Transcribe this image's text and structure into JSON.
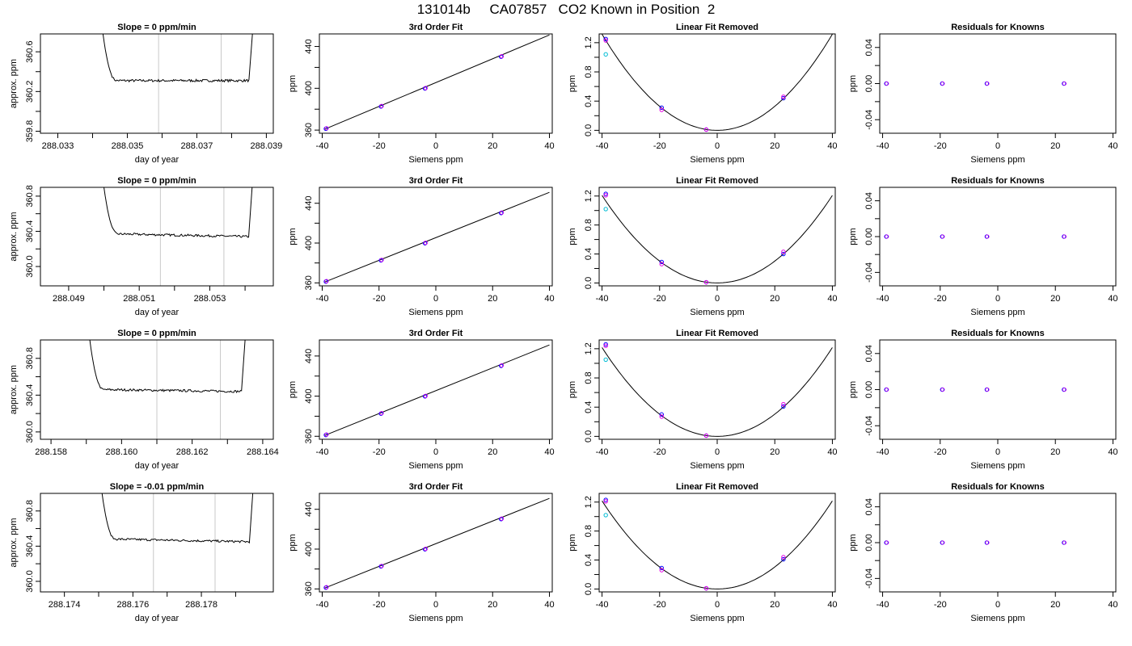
{
  "page_title": "131014b     CA07857   CO2 Known in Position  2",
  "colors": {
    "frame": "#000000",
    "marker_line": "#c8c8c8",
    "point_blue": "#0000ff",
    "point_magenta": "#e600e6",
    "point_cyan": "#00bcd4",
    "line": "#000000"
  },
  "chart_data": [
    {
      "type": "line",
      "title": "Slope =  0  ppm/min",
      "xlabel": "day of year",
      "ylabel": "approx. ppm",
      "xlim": [
        288.0325,
        288.0392
      ],
      "ylim": [
        359.78,
        360.78
      ],
      "xticks": [
        288.033,
        288.034,
        288.035,
        288.036,
        288.037,
        288.038,
        288.039
      ],
      "xticklabels": [
        "288.033",
        "",
        "288.035",
        "",
        "288.037",
        "",
        "288.039"
      ],
      "yticks": [
        359.8,
        360.0,
        360.2,
        360.4,
        360.6
      ],
      "yticklabels": [
        "359.8",
        "",
        "360.2",
        "",
        "360.6"
      ],
      "vlines": [
        288.0359,
        288.0377
      ],
      "series": [
        {
          "x": [
            288.0343,
            288.0345,
            288.0347,
            288.0385,
            288.0386
          ],
          "y": [
            360.78,
            360.4,
            360.31,
            360.31,
            360.78
          ]
        }
      ]
    },
    {
      "type": "line",
      "title": "3rd Order Fit",
      "xlabel": "Siemens ppm",
      "ylabel": "ppm",
      "xlim": [
        -41,
        41
      ],
      "ylim": [
        357,
        452
      ],
      "xticks": [
        -40,
        -20,
        0,
        20,
        40
      ],
      "xticklabels": [
        "-40",
        "-20",
        "0",
        "20",
        "40"
      ],
      "yticks": [
        360,
        380,
        400,
        420,
        440
      ],
      "yticklabels": [
        "360",
        "",
        "400",
        "",
        "440"
      ],
      "fit_line": [
        [
          -39,
          361
        ],
        [
          40,
          451
        ]
      ],
      "points": [
        {
          "x": -38.7,
          "y": 361.3
        },
        {
          "x": -19.3,
          "y": 382.6
        },
        {
          "x": -3.8,
          "y": 399.8
        },
        {
          "x": 23.0,
          "y": 430.2
        }
      ]
    },
    {
      "type": "line",
      "title": "Linear Fit Removed",
      "xlabel": "Siemens ppm",
      "ylabel": "ppm",
      "xlim": [
        -41,
        41
      ],
      "ylim": [
        -0.04,
        1.32
      ],
      "xticks": [
        -40,
        -20,
        0,
        20,
        40
      ],
      "xticklabels": [
        "-40",
        "-20",
        "0",
        "20",
        "40"
      ],
      "yticks": [
        0,
        0.2,
        0.4,
        0.6,
        0.8,
        1.0,
        1.2
      ],
      "yticklabels": [
        "0.0",
        "",
        "0.4",
        "",
        "0.8",
        "",
        "1.2"
      ],
      "quadratic": {
        "vertex_x": 0,
        "coef": 0.000822
      },
      "points": [
        {
          "x": -38.7,
          "y": 1.25,
          "c": "blue"
        },
        {
          "x": -38.7,
          "y": 1.23,
          "c": "magenta"
        },
        {
          "x": -38.7,
          "y": 1.04,
          "c": "cyan"
        },
        {
          "x": -19.3,
          "y": 0.31,
          "c": "blue"
        },
        {
          "x": -19.3,
          "y": 0.28,
          "c": "magenta"
        },
        {
          "x": -3.8,
          "y": 0.01,
          "c": "blue"
        },
        {
          "x": -3.8,
          "y": 0.01,
          "c": "magenta"
        },
        {
          "x": 23.0,
          "y": 0.44,
          "c": "blue"
        },
        {
          "x": 23.0,
          "y": 0.46,
          "c": "magenta"
        }
      ]
    },
    {
      "type": "scatter",
      "title": "Residuals for Knowns",
      "xlabel": "Siemens ppm",
      "ylabel": "ppm",
      "xlim": [
        -41,
        41
      ],
      "ylim": [
        -0.055,
        0.055
      ],
      "xticks": [
        -40,
        -20,
        0,
        20,
        40
      ],
      "xticklabels": [
        "-40",
        "-20",
        "0",
        "20",
        "40"
      ],
      "yticks": [
        -0.04,
        -0.02,
        0,
        0.02,
        0.04
      ],
      "yticklabels": [
        "-0.04",
        "",
        "0.00",
        "",
        "0.04"
      ],
      "points": [
        {
          "x": -38.7,
          "y": 0
        },
        {
          "x": -19.3,
          "y": 0
        },
        {
          "x": -3.8,
          "y": 0
        },
        {
          "x": 23.0,
          "y": 0
        }
      ]
    },
    {
      "type": "line",
      "title": "Slope =  0  ppm/min",
      "xlabel": "day of year",
      "ylabel": "approx. ppm",
      "xlim": [
        288.0482,
        288.0548
      ],
      "ylim": [
        359.78,
        360.9
      ],
      "xticks": [
        288.049,
        288.05,
        288.051,
        288.052,
        288.053,
        288.054
      ],
      "xticklabels": [
        "288.049",
        "",
        "288.051",
        "",
        "288.053",
        ""
      ],
      "yticks": [
        360.0,
        360.2,
        360.4,
        360.6,
        360.8
      ],
      "yticklabels": [
        "360.0",
        "",
        "360.4",
        "",
        "360.8"
      ],
      "vlines": [
        288.0516,
        288.0534
      ],
      "series": [
        {
          "x": [
            288.05,
            288.0502,
            288.0504,
            288.0541,
            288.0542
          ],
          "y": [
            360.9,
            360.5,
            360.37,
            360.34,
            360.9
          ]
        }
      ]
    },
    {
      "type": "line",
      "title": "3rd Order Fit",
      "xlabel": "Siemens ppm",
      "ylabel": "ppm",
      "xlim": [
        -41,
        41
      ],
      "ylim": [
        357,
        456
      ],
      "xticks": [
        -40,
        -20,
        0,
        20,
        40
      ],
      "xticklabels": [
        "-40",
        "-20",
        "0",
        "20",
        "40"
      ],
      "yticks": [
        360,
        380,
        400,
        420,
        440
      ],
      "yticklabels": [
        "360",
        "",
        "400",
        "",
        "440"
      ],
      "fit_line": [
        [
          -39,
          361
        ],
        [
          40,
          451
        ]
      ],
      "points": [
        {
          "x": -38.7,
          "y": 361.3
        },
        {
          "x": -19.3,
          "y": 382.6
        },
        {
          "x": -3.8,
          "y": 399.8
        },
        {
          "x": 23.0,
          "y": 430.2
        }
      ]
    },
    {
      "type": "line",
      "title": "Linear Fit Removed",
      "xlabel": "Siemens ppm",
      "ylabel": "ppm",
      "xlim": [
        -41,
        41
      ],
      "ylim": [
        -0.04,
        1.32
      ],
      "xticks": [
        -40,
        -20,
        0,
        20,
        40
      ],
      "xticklabels": [
        "-40",
        "-20",
        "0",
        "20",
        "40"
      ],
      "yticks": [
        0,
        0.2,
        0.4,
        0.6,
        0.8,
        1.0,
        1.2
      ],
      "yticklabels": [
        "0.0",
        "",
        "0.4",
        "",
        "0.8",
        "",
        "1.2"
      ],
      "quadratic": {
        "vertex_x": 0,
        "coef": 0.000755
      },
      "points": [
        {
          "x": -38.7,
          "y": 1.23,
          "c": "blue"
        },
        {
          "x": -38.7,
          "y": 1.21,
          "c": "magenta"
        },
        {
          "x": -38.7,
          "y": 1.02,
          "c": "cyan"
        },
        {
          "x": -19.3,
          "y": 0.29,
          "c": "blue"
        },
        {
          "x": -19.3,
          "y": 0.26,
          "c": "magenta"
        },
        {
          "x": -3.8,
          "y": 0.01,
          "c": "blue"
        },
        {
          "x": -3.8,
          "y": 0.01,
          "c": "magenta"
        },
        {
          "x": 23.0,
          "y": 0.4,
          "c": "blue"
        },
        {
          "x": 23.0,
          "y": 0.43,
          "c": "magenta"
        }
      ]
    },
    {
      "type": "scatter",
      "title": "Residuals for Knowns",
      "xlabel": "Siemens ppm",
      "ylabel": "ppm",
      "xlim": [
        -41,
        41
      ],
      "ylim": [
        -0.055,
        0.055
      ],
      "xticks": [
        -40,
        -20,
        0,
        20,
        40
      ],
      "xticklabels": [
        "-40",
        "-20",
        "0",
        "20",
        "40"
      ],
      "yticks": [
        -0.04,
        -0.02,
        0,
        0.02,
        0.04
      ],
      "yticklabels": [
        "-0.04",
        "",
        "0.00",
        "",
        "0.04"
      ],
      "points": [
        {
          "x": -38.7,
          "y": 0
        },
        {
          "x": -19.3,
          "y": 0
        },
        {
          "x": -3.8,
          "y": 0
        },
        {
          "x": 23.0,
          "y": 0
        }
      ]
    },
    {
      "type": "line",
      "title": "Slope =  0  ppm/min",
      "xlabel": "day of year",
      "ylabel": "approx. ppm",
      "xlim": [
        288.1577,
        288.1643
      ],
      "ylim": [
        359.92,
        361.0
      ],
      "xticks": [
        288.158,
        288.159,
        288.16,
        288.161,
        288.162,
        288.163,
        288.164
      ],
      "xticklabels": [
        "288.158",
        "",
        "288.160",
        "",
        "288.162",
        "",
        "288.164"
      ],
      "yticks": [
        360.0,
        360.2,
        360.4,
        360.6,
        360.8
      ],
      "yticklabels": [
        "360.0",
        "",
        "360.4",
        "",
        "360.8"
      ],
      "vlines": [
        288.161,
        288.1628
      ],
      "series": [
        {
          "x": [
            288.1591,
            288.1593,
            288.1595,
            288.1634,
            288.1635
          ],
          "y": [
            361.0,
            360.55,
            360.46,
            360.44,
            361.0
          ]
        }
      ]
    },
    {
      "type": "line",
      "title": "3rd Order Fit",
      "xlabel": "Siemens ppm",
      "ylabel": "ppm",
      "xlim": [
        -41,
        41
      ],
      "ylim": [
        357,
        456
      ],
      "xticks": [
        -40,
        -20,
        0,
        20,
        40
      ],
      "xticklabels": [
        "-40",
        "-20",
        "0",
        "20",
        "40"
      ],
      "yticks": [
        360,
        380,
        400,
        420,
        440
      ],
      "yticklabels": [
        "360",
        "",
        "400",
        "",
        "440"
      ],
      "fit_line": [
        [
          -39,
          361
        ],
        [
          40,
          451
        ]
      ],
      "points": [
        {
          "x": -38.7,
          "y": 361.3
        },
        {
          "x": -19.3,
          "y": 382.6
        },
        {
          "x": -3.8,
          "y": 399.8
        },
        {
          "x": 23.0,
          "y": 430.2
        }
      ]
    },
    {
      "type": "line",
      "title": "Linear Fit Removed",
      "xlabel": "Siemens ppm",
      "ylabel": "ppm",
      "xlim": [
        -41,
        41
      ],
      "ylim": [
        -0.04,
        1.32
      ],
      "xticks": [
        -40,
        -20,
        0,
        20,
        40
      ],
      "xticklabels": [
        "-40",
        "-20",
        "0",
        "20",
        "40"
      ],
      "yticks": [
        0,
        0.2,
        0.4,
        0.6,
        0.8,
        1.0,
        1.2
      ],
      "yticklabels": [
        "0.0",
        "",
        "0.4",
        "",
        "0.8",
        "",
        "1.2"
      ],
      "quadratic": {
        "vertex_x": 0,
        "coef": 0.00076
      },
      "points": [
        {
          "x": -38.7,
          "y": 1.26,
          "c": "blue"
        },
        {
          "x": -38.7,
          "y": 1.24,
          "c": "magenta"
        },
        {
          "x": -38.7,
          "y": 1.05,
          "c": "cyan"
        },
        {
          "x": -19.3,
          "y": 0.3,
          "c": "blue"
        },
        {
          "x": -19.3,
          "y": 0.27,
          "c": "magenta"
        },
        {
          "x": -3.8,
          "y": 0.01,
          "c": "blue"
        },
        {
          "x": -3.8,
          "y": 0.01,
          "c": "magenta"
        },
        {
          "x": 23.0,
          "y": 0.41,
          "c": "blue"
        },
        {
          "x": 23.0,
          "y": 0.44,
          "c": "magenta"
        }
      ]
    },
    {
      "type": "scatter",
      "title": "Residuals for Knowns",
      "xlabel": "Siemens ppm",
      "ylabel": "ppm",
      "xlim": [
        -41,
        41
      ],
      "ylim": [
        -0.055,
        0.055
      ],
      "xticks": [
        -40,
        -20,
        0,
        20,
        40
      ],
      "xticklabels": [
        "-40",
        "-20",
        "0",
        "20",
        "40"
      ],
      "yticks": [
        -0.04,
        -0.02,
        0,
        0.02,
        0.04
      ],
      "yticklabels": [
        "-0.04",
        "",
        "0.00",
        "",
        "0.04"
      ],
      "points": [
        {
          "x": -38.7,
          "y": 0
        },
        {
          "x": -19.3,
          "y": 0
        },
        {
          "x": -3.8,
          "y": 0
        },
        {
          "x": 23.0,
          "y": 0
        }
      ]
    },
    {
      "type": "line",
      "title": "Slope =  -0.01  ppm/min",
      "xlabel": "day of year",
      "ylabel": "approx. ppm",
      "xlim": [
        288.1733,
        288.1801
      ],
      "ylim": [
        359.88,
        361.0
      ],
      "xticks": [
        288.174,
        288.175,
        288.176,
        288.177,
        288.178,
        288.179
      ],
      "xticklabels": [
        "288.174",
        "",
        "288.176",
        "",
        "288.178",
        ""
      ],
      "yticks": [
        360.0,
        360.2,
        360.4,
        360.6,
        360.8
      ],
      "yticklabels": [
        "360.0",
        "",
        "360.4",
        "",
        "360.8"
      ],
      "vlines": [
        288.1766,
        288.1784
      ],
      "series": [
        {
          "x": [
            288.1751,
            288.1753,
            288.1755,
            288.1794,
            288.1795
          ],
          "y": [
            361.0,
            360.58,
            360.48,
            360.45,
            361.0
          ]
        }
      ]
    },
    {
      "type": "line",
      "title": "3rd Order Fit",
      "xlabel": "Siemens ppm",
      "ylabel": "ppm",
      "xlim": [
        -41,
        41
      ],
      "ylim": [
        357,
        456
      ],
      "xticks": [
        -40,
        -20,
        0,
        20,
        40
      ],
      "xticklabels": [
        "-40",
        "-20",
        "0",
        "20",
        "40"
      ],
      "yticks": [
        360,
        380,
        400,
        420,
        440
      ],
      "yticklabels": [
        "360",
        "",
        "400",
        "",
        "440"
      ],
      "fit_line": [
        [
          -39,
          361
        ],
        [
          40,
          451
        ]
      ],
      "points": [
        {
          "x": -38.7,
          "y": 361.3
        },
        {
          "x": -19.3,
          "y": 382.6
        },
        {
          "x": -3.8,
          "y": 399.8
        },
        {
          "x": 23.0,
          "y": 430.2
        }
      ]
    },
    {
      "type": "line",
      "title": "Linear Fit Removed",
      "xlabel": "Siemens ppm",
      "ylabel": "ppm",
      "xlim": [
        -41,
        41
      ],
      "ylim": [
        -0.04,
        1.32
      ],
      "xticks": [
        -40,
        -20,
        0,
        20,
        40
      ],
      "xticklabels": [
        "-40",
        "-20",
        "0",
        "20",
        "40"
      ],
      "yticks": [
        0,
        0.2,
        0.4,
        0.6,
        0.8,
        1.0,
        1.2
      ],
      "yticklabels": [
        "0.0",
        "",
        "0.4",
        "",
        "0.8",
        "",
        "1.2"
      ],
      "quadratic": {
        "vertex_x": 0,
        "coef": 0.00076
      },
      "points": [
        {
          "x": -38.7,
          "y": 1.23,
          "c": "blue"
        },
        {
          "x": -38.7,
          "y": 1.21,
          "c": "magenta"
        },
        {
          "x": -38.7,
          "y": 1.02,
          "c": "cyan"
        },
        {
          "x": -19.3,
          "y": 0.29,
          "c": "blue"
        },
        {
          "x": -19.3,
          "y": 0.26,
          "c": "magenta"
        },
        {
          "x": -3.8,
          "y": 0.01,
          "c": "blue"
        },
        {
          "x": -3.8,
          "y": 0.01,
          "c": "magenta"
        },
        {
          "x": 23.0,
          "y": 0.41,
          "c": "blue"
        },
        {
          "x": 23.0,
          "y": 0.44,
          "c": "magenta"
        }
      ]
    },
    {
      "type": "scatter",
      "title": "Residuals for Knowns",
      "xlabel": "Siemens ppm",
      "ylabel": "ppm",
      "xlim": [
        -41,
        41
      ],
      "ylim": [
        -0.055,
        0.055
      ],
      "xticks": [
        -40,
        -20,
        0,
        20,
        40
      ],
      "xticklabels": [
        "-40",
        "-20",
        "0",
        "20",
        "40"
      ],
      "yticks": [
        -0.04,
        -0.02,
        0,
        0.02,
        0.04
      ],
      "yticklabels": [
        "-0.04",
        "",
        "0.00",
        "",
        "0.04"
      ],
      "points": [
        {
          "x": -38.7,
          "y": 0
        },
        {
          "x": -19.3,
          "y": 0
        },
        {
          "x": -3.8,
          "y": 0
        },
        {
          "x": 23.0,
          "y": 0
        }
      ]
    }
  ]
}
